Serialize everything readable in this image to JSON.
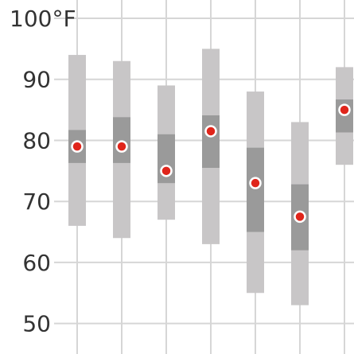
{
  "chart_data": {
    "type": "range-bar",
    "y_unit": "°F",
    "ylim": [
      45,
      103
    ],
    "yticks": [
      {
        "value": 100,
        "label": "100°F"
      },
      {
        "value": 90,
        "label": "90"
      },
      {
        "value": 80,
        "label": "80"
      },
      {
        "value": 70,
        "label": "70"
      },
      {
        "value": 60,
        "label": "60"
      },
      {
        "value": 50,
        "label": "50"
      }
    ],
    "grid": true,
    "series": [
      {
        "min": 66,
        "max": 94,
        "inner_low": 76.3,
        "inner_high": 81.7,
        "mean": 79
      },
      {
        "min": 64,
        "max": 93,
        "inner_low": 76.3,
        "inner_high": 83.8,
        "mean": 79
      },
      {
        "min": 67,
        "max": 89,
        "inner_low": 73,
        "inner_high": 81,
        "mean": 75
      },
      {
        "min": 63,
        "max": 95,
        "inner_low": 75.5,
        "inner_high": 84.1,
        "mean": 81.5
      },
      {
        "min": 55,
        "max": 88,
        "inner_low": 65,
        "inner_high": 78.8,
        "mean": 73
      },
      {
        "min": 53,
        "max": 83,
        "inner_low": 62,
        "inner_high": 72.8,
        "mean": 67.5
      },
      {
        "min": 76,
        "max": 92,
        "inner_low": 81.3,
        "inner_high": 86.7,
        "mean": 85
      }
    ],
    "colors": {
      "outer_range": "#c8c6c7",
      "inner_range": "#9a9a9a",
      "mean_fill": "#e0251b",
      "mean_stroke": "#ffffff",
      "grid": "#d6d6d6"
    }
  }
}
